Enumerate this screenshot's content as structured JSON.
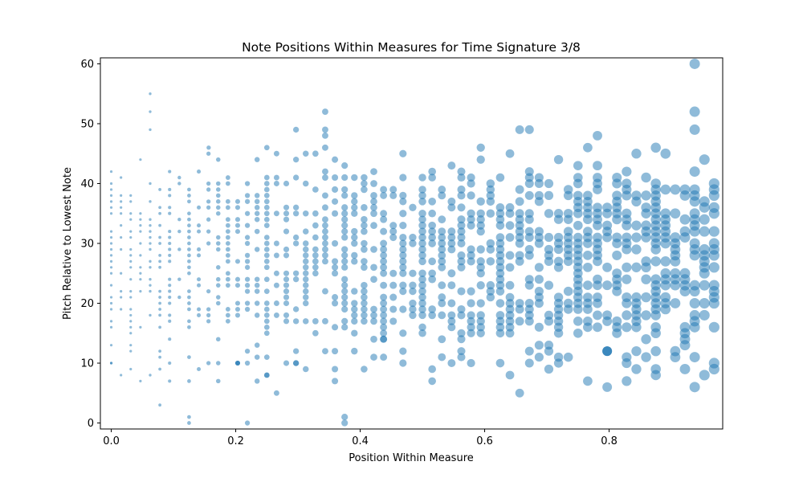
{
  "chart_data": {
    "type": "scatter",
    "title": "Note Positions Within Measures for Time Signature 3/8",
    "xlabel": "Position Within Measure",
    "ylabel": "Pitch Relative to Lowest Note",
    "xlim": [
      -0.0175,
      0.9825
    ],
    "ylim": [
      -1,
      61
    ],
    "xticks": [
      0.0,
      0.2,
      0.4,
      0.6,
      0.8
    ],
    "xtick_labels": [
      "0.0",
      "0.2",
      "0.4",
      "0.6",
      "0.8"
    ],
    "yticks": [
      0,
      10,
      20,
      30,
      40,
      50,
      60
    ],
    "ytick_labels": [
      "0",
      "10",
      "20",
      "30",
      "40",
      "50",
      "60"
    ],
    "grid": false,
    "legend": "none",
    "color": "#1f77b4",
    "alpha": 0.5,
    "marker_size_encodes": "position within measure (larger toward later positions)",
    "x_step": 0.015625,
    "x_positions_count": 63,
    "dense_pitch_range": [
      15,
      41
    ],
    "outliers": [
      {
        "x": 0.0625,
        "y": 55
      },
      {
        "x": 0.0625,
        "y": 52
      },
      {
        "x": 0.0625,
        "y": 49
      },
      {
        "x": 0.078125,
        "y": 3
      },
      {
        "x": 0.125,
        "y": 1
      },
      {
        "x": 0.125,
        "y": 0
      },
      {
        "x": 0.21875,
        "y": 0
      },
      {
        "x": 0.265625,
        "y": 5
      },
      {
        "x": 0.296875,
        "y": 49
      },
      {
        "x": 0.34375,
        "y": 52
      },
      {
        "x": 0.34375,
        "y": 49
      },
      {
        "x": 0.34375,
        "y": 48
      },
      {
        "x": 0.34375,
        "y": 46
      },
      {
        "x": 0.375,
        "y": 1
      },
      {
        "x": 0.375,
        "y": 0
      },
      {
        "x": 0.65625,
        "y": 5
      },
      {
        "x": 0.65625,
        "y": 49
      },
      {
        "x": 0.671875,
        "y": 49
      },
      {
        "x": 0.78125,
        "y": 48
      },
      {
        "x": 0.796875,
        "y": 6
      },
      {
        "x": 0.875,
        "y": 46
      },
      {
        "x": 0.9375,
        "y": 60
      },
      {
        "x": 0.9375,
        "y": 52
      },
      {
        "x": 0.9375,
        "y": 49
      },
      {
        "x": 0.9375,
        "y": 6
      },
      {
        "x": 0.1565,
        "y": 46
      },
      {
        "x": 0.25,
        "y": 46
      },
      {
        "x": 0.59375,
        "y": 46
      },
      {
        "x": 0.765625,
        "y": 46
      }
    ]
  }
}
